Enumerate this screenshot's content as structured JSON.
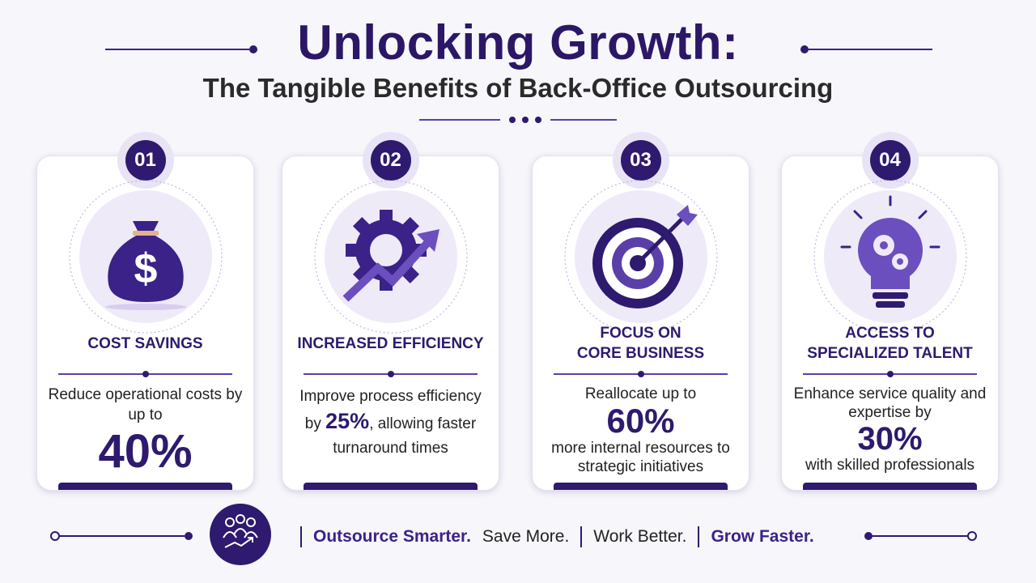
{
  "header": {
    "title": "Unlocking Growth:",
    "subtitle": "The Tangible Benefits of Back-Office Outsourcing"
  },
  "cards": [
    {
      "number": "01",
      "title_lines": [
        "COST SAVINGS"
      ],
      "text_before": "Reduce operational costs by up to",
      "highlight": "40%"
    },
    {
      "number": "02",
      "title_lines": [
        "INCREASED EFFICIENCY"
      ],
      "text_before": "Improve process efficiency by",
      "highlight": "25%",
      "text_after": ", allowing faster turnaround times"
    },
    {
      "number": "03",
      "title_lines": [
        "FOCUS ON",
        "CORE BUSINESS"
      ],
      "text_before": "Reallocate up to",
      "highlight": "60%",
      "text_after": "more internal resources to strategic initiatives"
    },
    {
      "number": "04",
      "title_lines": [
        "ACCESS TO",
        "SPECIALIZED TALENT"
      ],
      "text_before": "Enhance service quality and expertise by",
      "highlight": "30%",
      "text_after": "with skilled professionals"
    }
  ],
  "footer": {
    "taglines": [
      "Outsource Smarter.",
      "Save More.",
      "Work Better.",
      "Grow Faster."
    ]
  }
}
